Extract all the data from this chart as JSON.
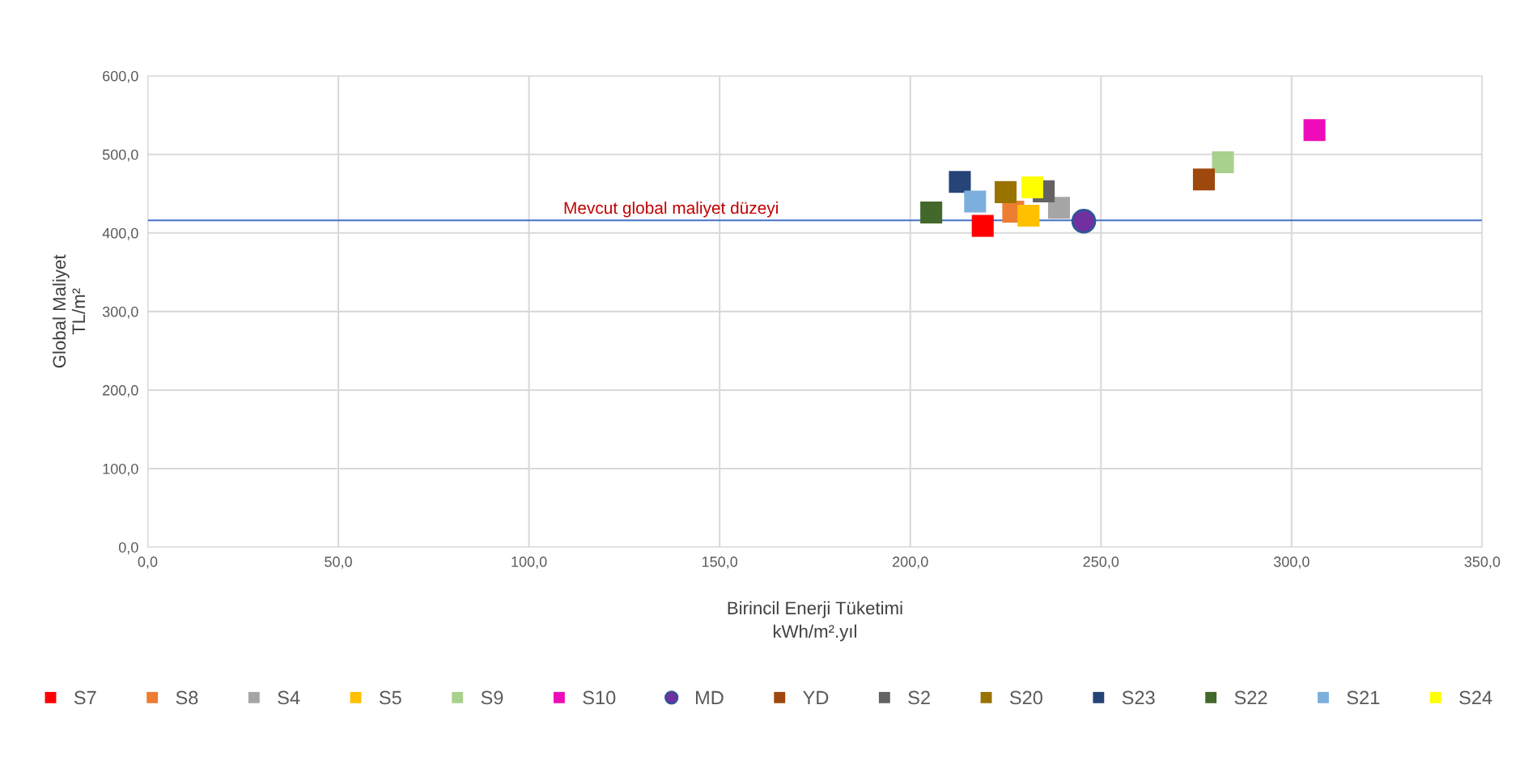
{
  "chart_data": {
    "type": "scatter",
    "xlabel": "Birincil Enerji Tüketimi\nkWh/m².yıl",
    "ylabel": "Global Maliyet\nTL/m²",
    "xlim": [
      0,
      350
    ],
    "ylim": [
      0,
      600
    ],
    "xticks": [
      {
        "value": 0,
        "label": "0,0"
      },
      {
        "value": 50,
        "label": "50,0"
      },
      {
        "value": 100,
        "label": "100,0"
      },
      {
        "value": 150,
        "label": "150,0"
      },
      {
        "value": 200,
        "label": "200,0"
      },
      {
        "value": 250,
        "label": "250,0"
      },
      {
        "value": 300,
        "label": "300,0"
      },
      {
        "value": 350,
        "label": "350,0"
      }
    ],
    "yticks": [
      {
        "value": 0,
        "label": "0,0"
      },
      {
        "value": 100,
        "label": "100,0"
      },
      {
        "value": 200,
        "label": "200,0"
      },
      {
        "value": 300,
        "label": "300,0"
      },
      {
        "value": 400,
        "label": "400,0"
      },
      {
        "value": 500,
        "label": "500,0"
      },
      {
        "value": 600,
        "label": "600,0"
      }
    ],
    "grid": true,
    "legend": "bottom",
    "marker": "square",
    "ref_lines": [
      {
        "axis": "y",
        "value": 416,
        "label": "Mevcut global maliyet düzeyi",
        "color": "#4472c4"
      }
    ],
    "series": [
      {
        "name": "S7",
        "color": "#ff0000",
        "x": [
          219
        ],
        "values": [
          409
        ]
      },
      {
        "name": "S8",
        "color": "#ed7d31",
        "x": [
          227
        ],
        "values": [
          427
        ]
      },
      {
        "name": "S4",
        "color": "#a5a5a5",
        "x": [
          239
        ],
        "values": [
          432
        ]
      },
      {
        "name": "S5",
        "color": "#ffc000",
        "x": [
          231
        ],
        "values": [
          422
        ]
      },
      {
        "name": "S9",
        "color": "#a9d18e",
        "x": [
          282
        ],
        "values": [
          490
        ]
      },
      {
        "name": "S10",
        "color": "#ee0cb8",
        "x": [
          306
        ],
        "values": [
          531
        ]
      },
      {
        "name": "MD",
        "color": "#7030a0",
        "marker": "circle",
        "x": [
          245.5
        ],
        "values": [
          415
        ]
      },
      {
        "name": "YD",
        "color": "#9e480e",
        "x": [
          277
        ],
        "values": [
          468
        ]
      },
      {
        "name": "S2",
        "color": "#636363",
        "x": [
          235
        ],
        "values": [
          453
        ]
      },
      {
        "name": "S20",
        "color": "#997300",
        "x": [
          225
        ],
        "values": [
          452
        ]
      },
      {
        "name": "S23",
        "color": "#264478",
        "x": [
          213
        ],
        "values": [
          465
        ]
      },
      {
        "name": "S22",
        "color": "#43682b",
        "x": [
          205.5
        ],
        "values": [
          426
        ]
      },
      {
        "name": "S21",
        "color": "#7cafdd",
        "x": [
          217
        ],
        "values": [
          440
        ]
      },
      {
        "name": "S24",
        "color": "#ffff00",
        "x": [
          232
        ],
        "values": [
          458
        ]
      }
    ]
  }
}
